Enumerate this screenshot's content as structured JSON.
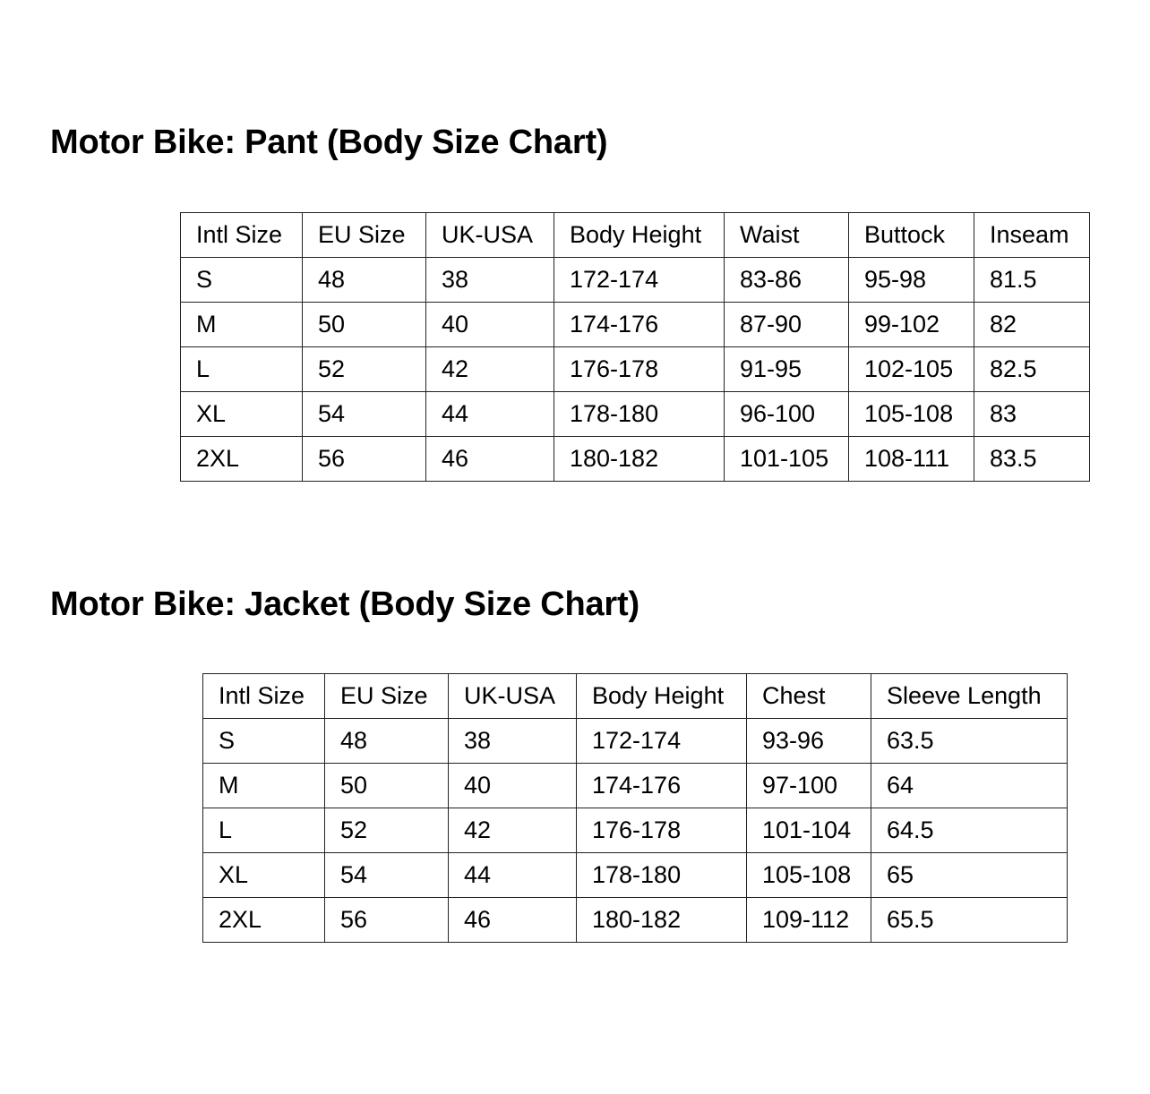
{
  "pant": {
    "title": "Motor Bike: Pant (Body Size Chart)",
    "headers": [
      "Intl Size",
      "EU Size",
      "UK-USA",
      "Body Height",
      "Waist",
      "Buttock",
      "Inseam"
    ],
    "rows": [
      [
        "S",
        "48",
        "38",
        "172-174",
        "83-86",
        "95-98",
        "81.5"
      ],
      [
        "M",
        "50",
        "40",
        "174-176",
        "87-90",
        "99-102",
        "82"
      ],
      [
        "L",
        "52",
        "42",
        "176-178",
        "91-95",
        "102-105",
        "82.5"
      ],
      [
        "XL",
        "54",
        "44",
        "178-180",
        "96-100",
        "105-108",
        "83"
      ],
      [
        "2XL",
        "56",
        "46",
        "180-182",
        "101-105",
        "108-111",
        "83.5"
      ]
    ]
  },
  "jacket": {
    "title": "Motor Bike: Jacket (Body Size Chart)",
    "headers": [
      "Intl Size",
      "EU Size",
      "UK-USA",
      "Body Height",
      "Chest",
      "Sleeve Length"
    ],
    "rows": [
      [
        "S",
        "48",
        "38",
        "172-174",
        "93-96",
        "63.5"
      ],
      [
        "M",
        "50",
        "40",
        "174-176",
        "97-100",
        "64"
      ],
      [
        "L",
        "52",
        "42",
        "176-178",
        "101-104",
        "64.5"
      ],
      [
        "XL",
        "54",
        "44",
        "178-180",
        "105-108",
        "65"
      ],
      [
        "2XL",
        "56",
        "46",
        "180-182",
        "109-112",
        "65.5"
      ]
    ]
  }
}
